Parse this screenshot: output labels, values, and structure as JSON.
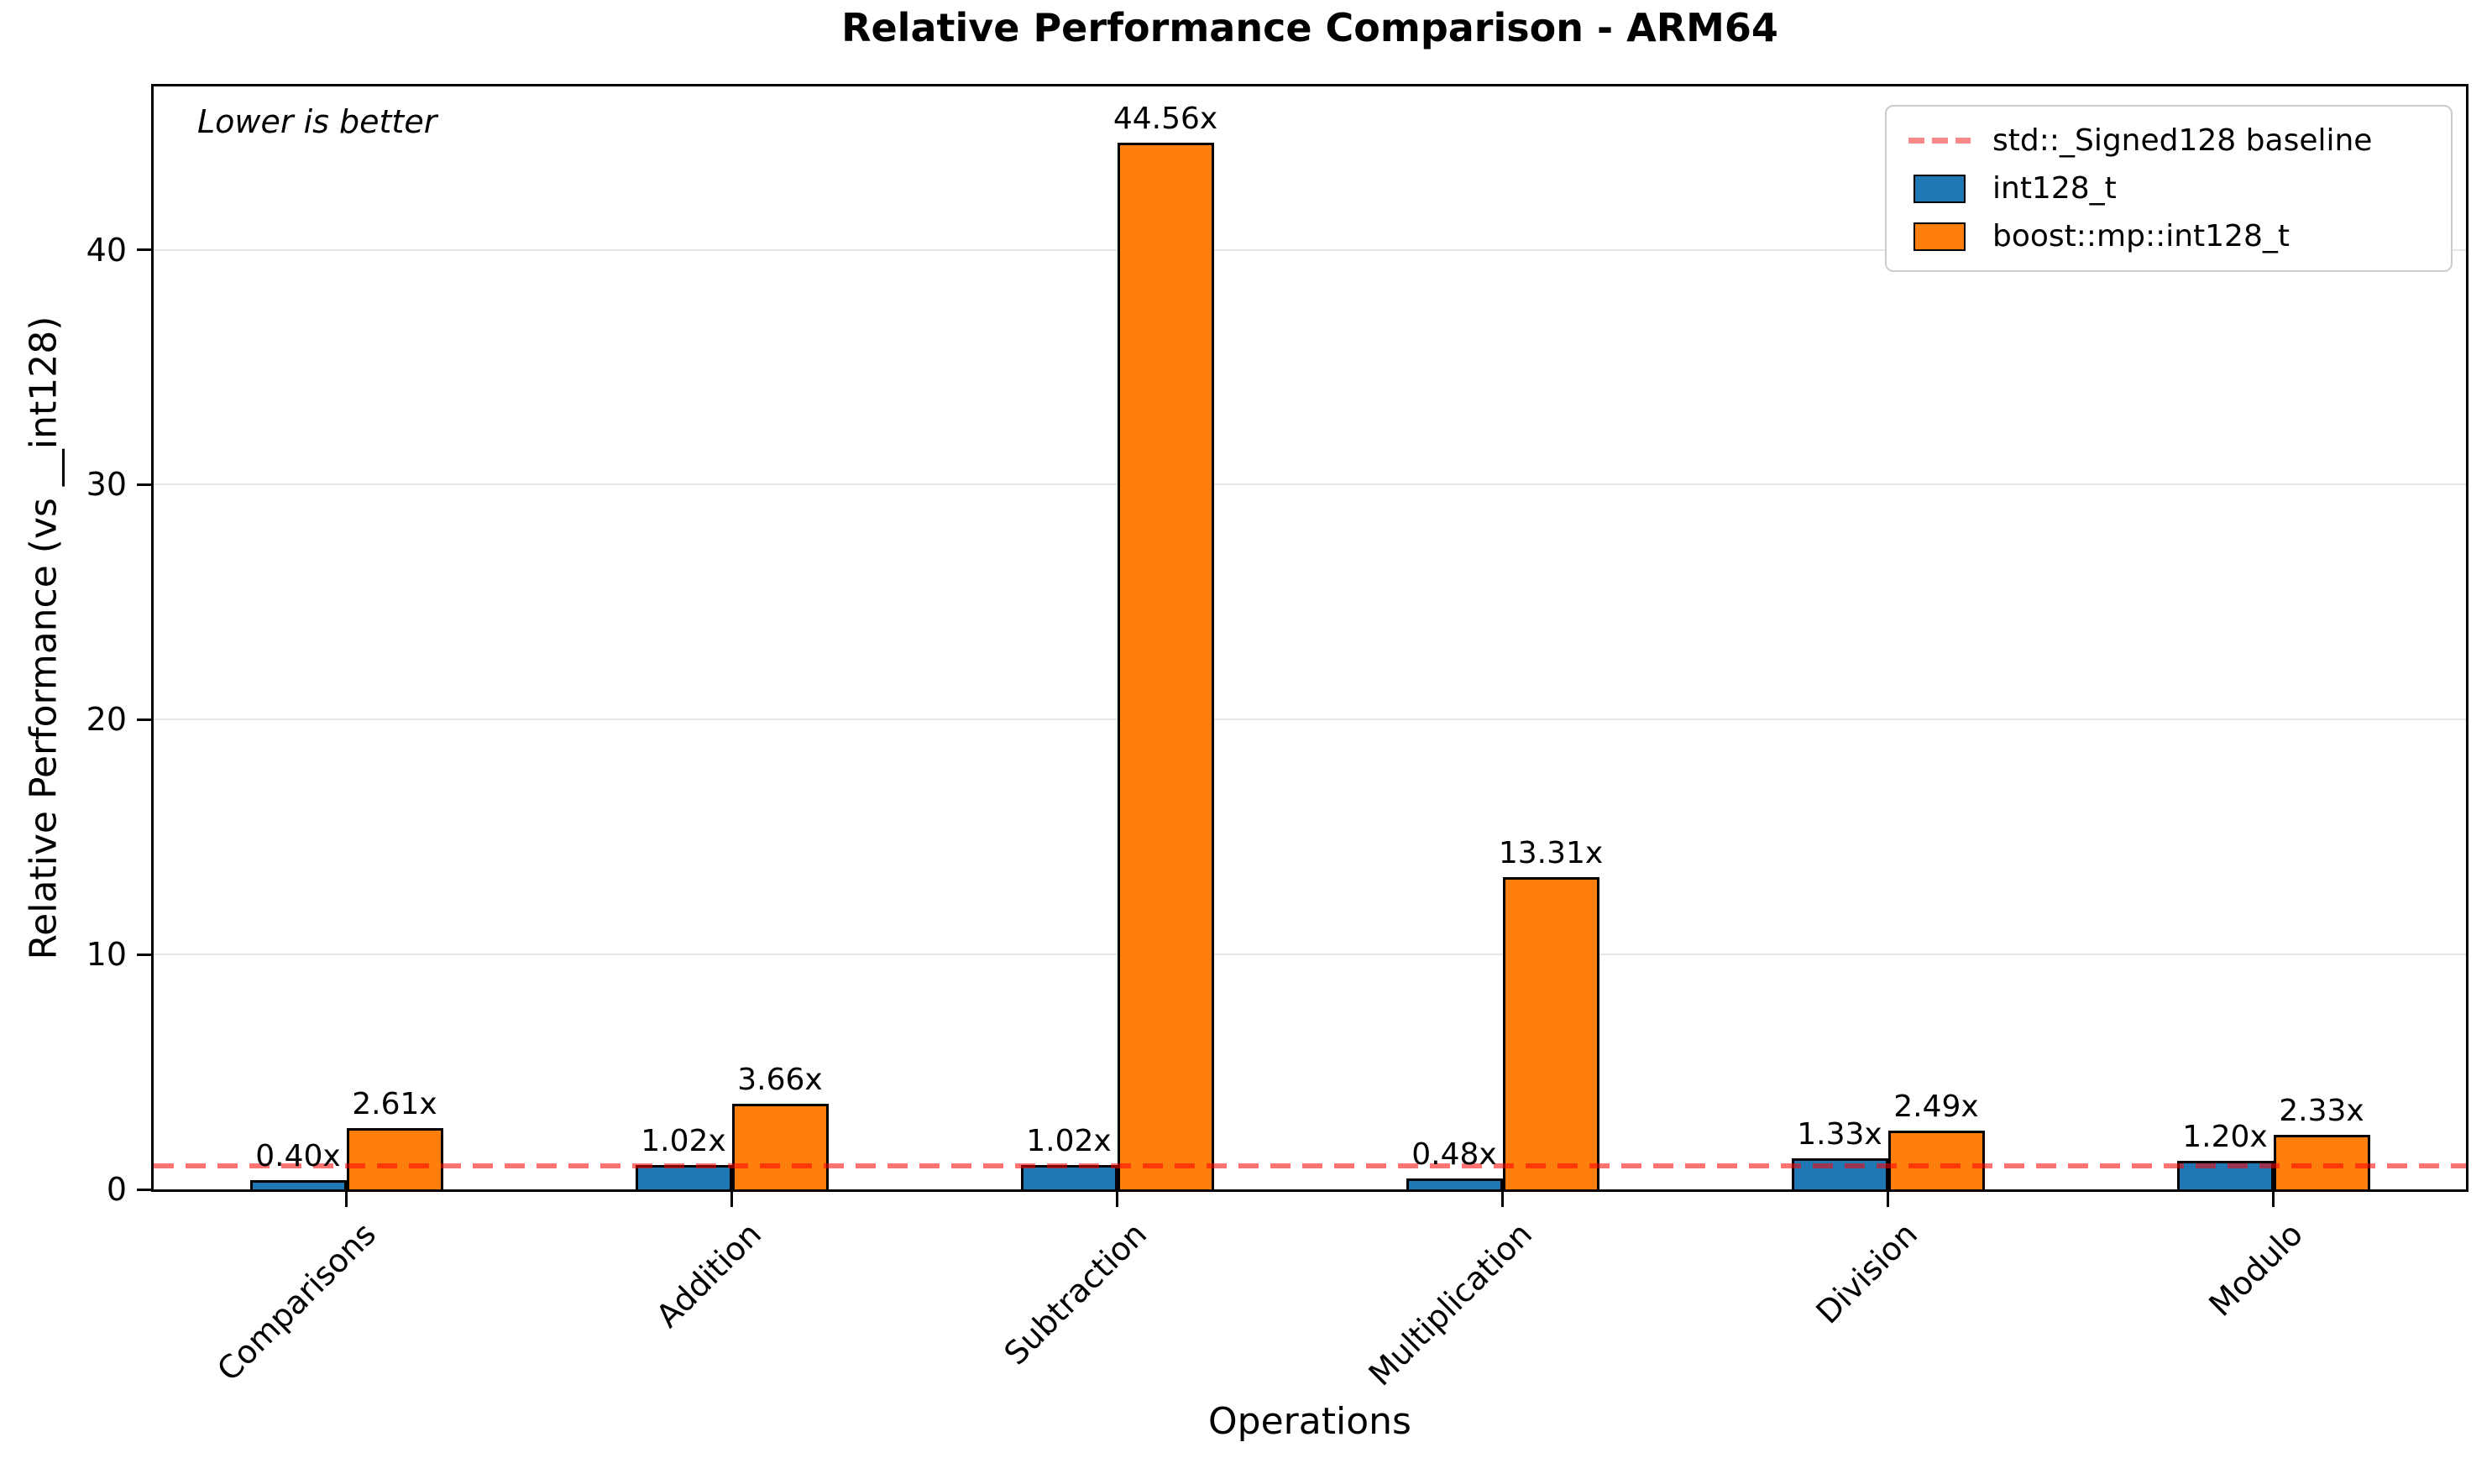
{
  "chart_data": {
    "type": "bar",
    "title": "Relative Performance Comparison - ARM64",
    "annotation": "Lower is better",
    "xlabel": "Operations",
    "ylabel": "Relative Performance (vs __int128)",
    "categories": [
      "Comparisons",
      "Addition",
      "Subtraction",
      "Multiplication",
      "Division",
      "Modulo"
    ],
    "series": [
      {
        "name": "int128_t",
        "color": "#1f77b4",
        "values": [
          0.4,
          1.02,
          1.02,
          0.48,
          1.33,
          1.2
        ]
      },
      {
        "name": "boost::mp::int128_t",
        "color": "#ff7f0e",
        "values": [
          2.61,
          3.66,
          44.56,
          13.31,
          2.49,
          2.33
        ]
      }
    ],
    "value_label_suffix": "x",
    "baseline": {
      "label": "std::_Signed128 baseline",
      "value": 1.0,
      "color": "#ff8080"
    },
    "yticks": [
      0,
      10,
      20,
      30,
      40
    ],
    "ylim": [
      0,
      46.95
    ],
    "grid": "horizontal",
    "legend_position": "top-right"
  },
  "legend": {
    "items": [
      {
        "label": "std::_Signed128 baseline",
        "type": "dashed-line",
        "color": "#f98888"
      },
      {
        "label": "int128_t",
        "type": "patch",
        "color": "#1f77b4"
      },
      {
        "label": "boost::mp::int128_t",
        "type": "patch",
        "color": "#ff7f0e"
      }
    ]
  }
}
